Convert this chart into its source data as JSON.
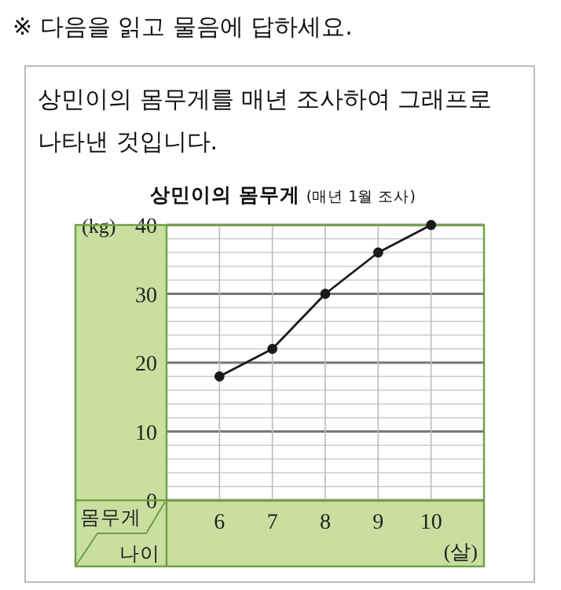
{
  "chart_data": {
    "type": "line",
    "title": "상민이의 몸무게",
    "subtitle": "(매년 1월 조사)",
    "ylabel": "(kg)",
    "xlabel": "(살)",
    "annotations": [
      "※ 다음을 읽고 물음에 답하세요.",
      "상민이의 몸무게를 매년 조사하여 그래프로 나타낸 것입니다.",
      "몸무게",
      "나이"
    ],
    "categories": [
      "6",
      "7",
      "8",
      "9",
      "10"
    ],
    "series": [
      {
        "color": "#1a1a1a",
        "values": [
          18,
          22,
          30,
          36,
          40
        ]
      }
    ],
    "ylim": [
      0,
      40
    ],
    "yticks": [
      0,
      {
        "value": 2,
        "label": null
      },
      {
        "value": 4,
        "label": null
      },
      {
        "value": 6,
        "label": null
      },
      {
        "value": 8,
        "label": null
      },
      10,
      {
        "value": 12,
        "label": null
      },
      {
        "value": 14,
        "label": null
      },
      {
        "value": 16,
        "label": null
      },
      {
        "value": 18,
        "label": null
      },
      20,
      {
        "value": 22,
        "label": null
      },
      {
        "value": 24,
        "label": null
      },
      {
        "value": 26,
        "label": null
      },
      {
        "value": 28,
        "label": null
      },
      30,
      {
        "value": 32,
        "label": null
      },
      {
        "value": 34,
        "label": null
      },
      {
        "value": 36,
        "label": null
      },
      {
        "value": 38,
        "label": null
      },
      40
    ],
    "grid": true,
    "marker": "circle",
    "line_style": "solid"
  }
}
